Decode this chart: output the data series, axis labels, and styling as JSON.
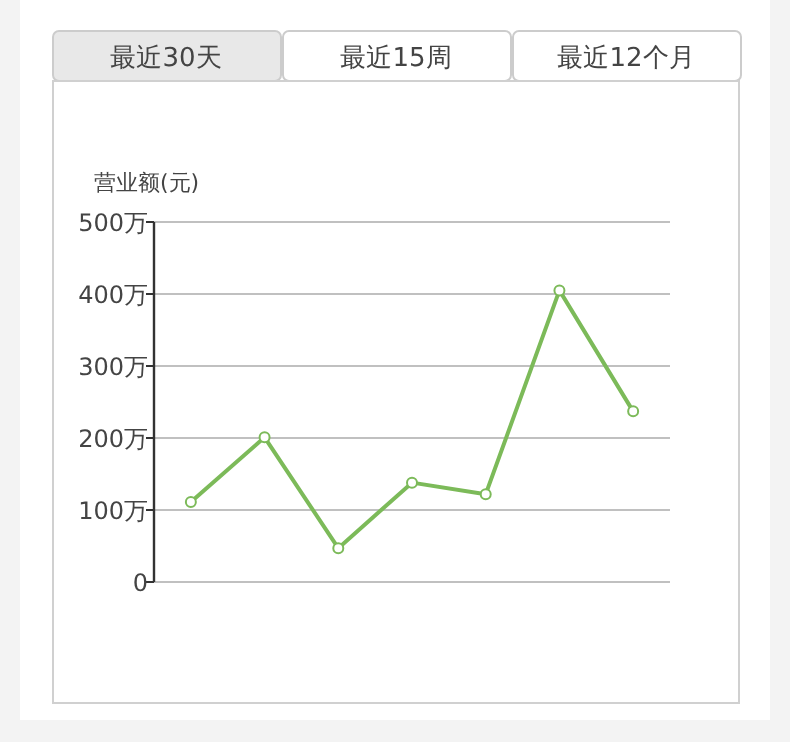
{
  "chart_data": {
    "type": "line",
    "ylabel": "营业额(元)",
    "annotations": [
      "最近30天",
      "最近15周",
      "最近12个月"
    ],
    "categories": [
      null,
      null,
      null,
      null,
      null,
      null,
      null
    ],
    "series": [
      {
        "color": "#7cba59",
        "values": [
          111,
          201,
          47,
          138,
          122,
          405,
          237
        ]
      }
    ],
    "ylim": [
      0,
      500
    ],
    "yticks": [
      {
        "value": 0,
        "label": "0"
      },
      {
        "value": 100,
        "label": "100万"
      },
      {
        "value": 200,
        "label": "200万"
      },
      {
        "value": 300,
        "label": "300万"
      },
      {
        "value": 400,
        "label": "400万"
      },
      {
        "value": 500,
        "label": "500万"
      }
    ],
    "grid": "y",
    "marker": "circle",
    "line_style": "solid"
  }
}
